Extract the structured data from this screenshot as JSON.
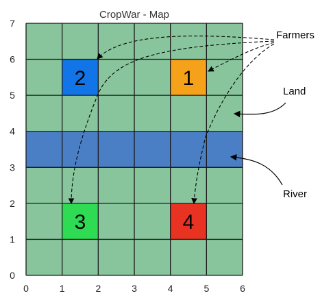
{
  "title": "CropWar - Map",
  "axes": {
    "x_ticks": [
      "0",
      "1",
      "2",
      "3",
      "4",
      "5",
      "6"
    ],
    "y_ticks": [
      "0",
      "1",
      "2",
      "3",
      "4",
      "5",
      "6",
      "7"
    ]
  },
  "grid": {
    "cols": 6,
    "rows": 7
  },
  "land": {
    "color": "#88c59c"
  },
  "river": {
    "y_from": 3,
    "y_to": 4,
    "color": "#4a7fc6"
  },
  "farmers": [
    {
      "label": "1",
      "x": 4,
      "y": 5,
      "color": "#f5a11a"
    },
    {
      "label": "2",
      "x": 1,
      "y": 5,
      "color": "#1175e8"
    },
    {
      "label": "3",
      "x": 1,
      "y": 1,
      "color": "#2edb52"
    },
    {
      "label": "4",
      "x": 4,
      "y": 1,
      "color": "#e83222"
    }
  ],
  "callouts": {
    "farmers": "Farmers",
    "land": "Land",
    "river": "River"
  }
}
